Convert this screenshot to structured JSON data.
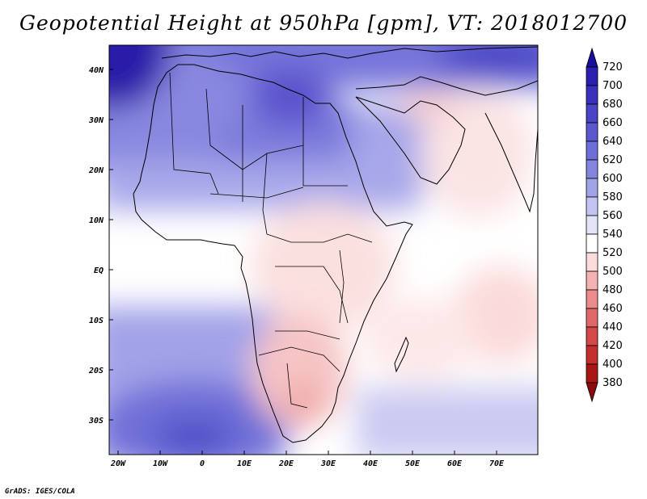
{
  "title": "Geopotential Height at 950hPa [gpm], VT: 2018012700",
  "credit": "GrADS: IGES/COLA",
  "lat_ticks": [
    "40N",
    "30N",
    "20N",
    "10N",
    "EQ",
    "10S",
    "20S",
    "30S"
  ],
  "lon_ticks": [
    "20W",
    "10W",
    "0",
    "10E",
    "20E",
    "30E",
    "40E",
    "50E",
    "60E",
    "70E"
  ],
  "colorbar": {
    "levels": [
      "720",
      "700",
      "680",
      "660",
      "640",
      "620",
      "600",
      "580",
      "560",
      "540",
      "520",
      "500",
      "480",
      "460",
      "440",
      "420",
      "400",
      "380"
    ],
    "colors": [
      "#1a0f9c",
      "#2a1fae",
      "#3a30bb",
      "#4a44c6",
      "#5a58cf",
      "#6e6ed8",
      "#8585df",
      "#a2a2e7",
      "#c4c4f0",
      "#e4e4f8",
      "#ffffff",
      "#fbdcdc",
      "#f4b2b2",
      "#ea8c8c",
      "#e06868",
      "#d54848",
      "#c42e2e",
      "#a81616",
      "#8a0c0c"
    ]
  },
  "chart_data": {
    "type": "heatmap",
    "title": "Geopotential Height at 950hPa [gpm], VT: 2018012700",
    "variable": "Geopotential Height",
    "level": "950hPa",
    "units": "gpm",
    "valid_time": "2018012700",
    "lon_range": [
      -23,
      80
    ],
    "lat_range": [
      -37,
      45
    ],
    "color_levels": [
      380,
      400,
      420,
      440,
      460,
      480,
      500,
      520,
      540,
      560,
      580,
      600,
      620,
      640,
      660,
      680,
      700,
      720
    ]
  }
}
